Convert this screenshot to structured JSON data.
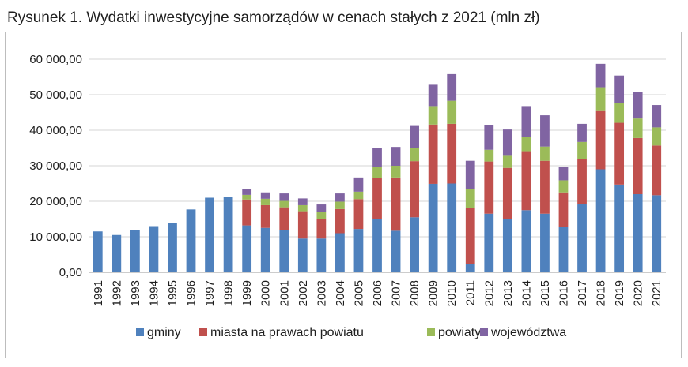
{
  "title": "Rysunek 1. Wydatki inwestycyjne samorządów w cenach stałych z 2021 (mln zł)",
  "colors": {
    "gminy": "#4f81bd",
    "miasta": "#c0504d",
    "powiaty": "#9bbb59",
    "wojewodztwa": "#8064a2"
  },
  "chart_data": {
    "type": "bar",
    "stacked": true,
    "title": "Rysunek 1. Wydatki inwestycyjne samorządów w cenach stałych z 2021 (mln zł)",
    "xlabel": "",
    "ylabel": "",
    "ylim": [
      0,
      60000
    ],
    "yticks": [
      "0,00",
      "10 000,00",
      "20 000,00",
      "30 000,00",
      "40 000,00",
      "50 000,00",
      "60 000,00"
    ],
    "grid": true,
    "legend_position": "bottom",
    "categories": [
      "1991",
      "1992",
      "1993",
      "1994",
      "1995",
      "1996",
      "1997",
      "1998",
      "1999",
      "2000",
      "2001",
      "2002",
      "2003",
      "2004",
      "2005",
      "2006",
      "2007",
      "2008",
      "2009",
      "2010",
      "2011",
      "2012",
      "2013",
      "2014",
      "2015",
      "2016",
      "2017",
      "2018",
      "2019",
      "2020",
      "2021"
    ],
    "series": [
      {
        "name": "gminy",
        "color": "#4f81bd",
        "values": [
          11500,
          10500,
          12000,
          13000,
          14000,
          17700,
          21000,
          21200,
          13200,
          12500,
          11800,
          9500,
          9500,
          11000,
          12200,
          15000,
          11700,
          15500,
          24900,
          25000,
          2300,
          16500,
          15100,
          17500,
          16500,
          12700,
          19200,
          29000,
          24700,
          22000,
          21700
        ]
      },
      {
        "name": "miasta na prawach powiatu",
        "color": "#c0504d",
        "values": [
          0,
          0,
          0,
          0,
          0,
          0,
          0,
          0,
          7300,
          6400,
          6500,
          7700,
          5500,
          6800,
          8400,
          11500,
          15000,
          15800,
          16700,
          16800,
          15700,
          14700,
          14300,
          16600,
          14900,
          9800,
          12800,
          16400,
          17400,
          15800,
          14000
        ]
      },
      {
        "name": "powiaty",
        "color": "#9bbb59",
        "values": [
          0,
          0,
          0,
          0,
          0,
          0,
          0,
          0,
          1300,
          1800,
          1800,
          1700,
          1900,
          2100,
          2100,
          3200,
          3300,
          3700,
          5200,
          6500,
          5400,
          3300,
          3400,
          3900,
          4000,
          3400,
          4700,
          6700,
          5600,
          5500,
          5100
        ]
      },
      {
        "name": "województwa",
        "color": "#8064a2",
        "values": [
          0,
          0,
          0,
          0,
          0,
          0,
          0,
          0,
          1700,
          1800,
          2100,
          1900,
          2200,
          2300,
          4000,
          5400,
          5300,
          6200,
          6000,
          7500,
          8000,
          6900,
          7400,
          8800,
          8800,
          3800,
          5100,
          6600,
          7700,
          7400,
          6300
        ]
      }
    ]
  }
}
